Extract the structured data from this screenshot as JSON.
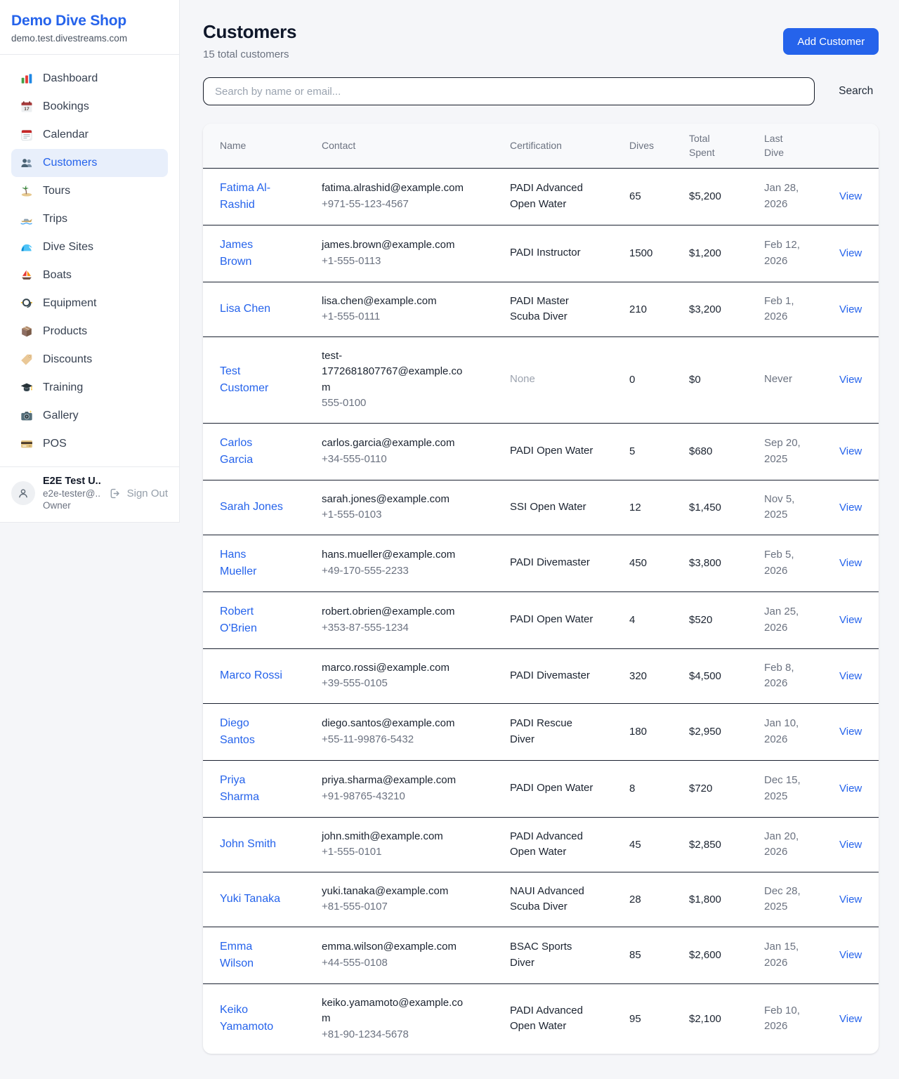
{
  "colors": {
    "accent": "#2563eb"
  },
  "sidebar": {
    "brand": {
      "name": "Demo Dive Shop",
      "domain": "demo.test.divestreams.com"
    },
    "items": [
      {
        "label": "Dashboard",
        "icon": "dashboard",
        "active": false
      },
      {
        "label": "Bookings",
        "icon": "bookings",
        "active": false
      },
      {
        "label": "Calendar",
        "icon": "calendar",
        "active": false
      },
      {
        "label": "Customers",
        "icon": "customers",
        "active": true
      },
      {
        "label": "Tours",
        "icon": "tours",
        "active": false
      },
      {
        "label": "Trips",
        "icon": "trips",
        "active": false
      },
      {
        "label": "Dive Sites",
        "icon": "dive-sites",
        "active": false
      },
      {
        "label": "Boats",
        "icon": "boats",
        "active": false
      },
      {
        "label": "Equipment",
        "icon": "equipment",
        "active": false
      },
      {
        "label": "Products",
        "icon": "products",
        "active": false
      },
      {
        "label": "Discounts",
        "icon": "discounts",
        "active": false
      },
      {
        "label": "Training",
        "icon": "training",
        "active": false
      },
      {
        "label": "Gallery",
        "icon": "gallery",
        "active": false
      },
      {
        "label": "POS",
        "icon": "pos",
        "active": false
      }
    ],
    "user": {
      "name": "E2E Test U...",
      "email": "e2e-tester@...",
      "role": "Owner",
      "sign_out_label": "Sign Out"
    }
  },
  "header": {
    "title": "Customers",
    "subtitle": "15 total customers",
    "add_button": "Add Customer"
  },
  "search": {
    "placeholder": "Search by name or email...",
    "button_label": "Search"
  },
  "table": {
    "columns": [
      "Name",
      "Contact",
      "Certification",
      "Dives",
      "Total\nSpent",
      "Last\nDive",
      ""
    ],
    "view_label": "View",
    "rows": [
      {
        "name": "Fatima Al-Rashid",
        "email": "fatima.alrashid@example.com",
        "phone": "+971-55-123-4567",
        "certification": "PADI Advanced Open Water",
        "muted": false,
        "dives": "65",
        "total_spent": "$5,200",
        "last_dive": "Jan 28,\n2026"
      },
      {
        "name": "James Brown",
        "email": "james.brown@example.com",
        "phone": "+1-555-0113",
        "certification": "PADI Instructor",
        "muted": false,
        "dives": "1500",
        "total_spent": "$1,200",
        "last_dive": "Feb 12,\n2026"
      },
      {
        "name": "Lisa Chen",
        "email": "lisa.chen@example.com",
        "phone": "+1-555-0111",
        "certification": "PADI Master Scuba Diver",
        "muted": false,
        "dives": "210",
        "total_spent": "$3,200",
        "last_dive": "Feb 1,\n2026"
      },
      {
        "name": "Test Customer",
        "email": "test-1772681807767@example.com",
        "phone": "555-0100",
        "certification": "None",
        "muted": true,
        "dives": "0",
        "total_spent": "$0",
        "last_dive": "Never"
      },
      {
        "name": "Carlos Garcia",
        "email": "carlos.garcia@example.com",
        "phone": "+34-555-0110",
        "certification": "PADI Open Water",
        "muted": false,
        "dives": "5",
        "total_spent": "$680",
        "last_dive": "Sep 20,\n2025"
      },
      {
        "name": "Sarah Jones",
        "email": "sarah.jones@example.com",
        "phone": "+1-555-0103",
        "certification": "SSI Open Water",
        "muted": false,
        "dives": "12",
        "total_spent": "$1,450",
        "last_dive": "Nov 5,\n2025"
      },
      {
        "name": "Hans Mueller",
        "email": "hans.mueller@example.com",
        "phone": "+49-170-555-2233",
        "certification": "PADI Divemaster",
        "muted": false,
        "dives": "450",
        "total_spent": "$3,800",
        "last_dive": "Feb 5,\n2026"
      },
      {
        "name": "Robert O'Brien",
        "email": "robert.obrien@example.com",
        "phone": "+353-87-555-1234",
        "certification": "PADI Open Water",
        "muted": false,
        "dives": "4",
        "total_spent": "$520",
        "last_dive": "Jan 25,\n2026"
      },
      {
        "name": "Marco Rossi",
        "email": "marco.rossi@example.com",
        "phone": "+39-555-0105",
        "certification": "PADI Divemaster",
        "muted": false,
        "dives": "320",
        "total_spent": "$4,500",
        "last_dive": "Feb 8,\n2026"
      },
      {
        "name": "Diego Santos",
        "email": "diego.santos@example.com",
        "phone": "+55-11-99876-5432",
        "certification": "PADI Rescue Diver",
        "muted": false,
        "dives": "180",
        "total_spent": "$2,950",
        "last_dive": "Jan 10,\n2026"
      },
      {
        "name": "Priya Sharma",
        "email": "priya.sharma@example.com",
        "phone": "+91-98765-43210",
        "certification": "PADI Open Water",
        "muted": false,
        "dives": "8",
        "total_spent": "$720",
        "last_dive": "Dec 15,\n2025"
      },
      {
        "name": "John Smith",
        "email": "john.smith@example.com",
        "phone": "+1-555-0101",
        "certification": "PADI Advanced Open Water",
        "muted": false,
        "dives": "45",
        "total_spent": "$2,850",
        "last_dive": "Jan 20,\n2026"
      },
      {
        "name": "Yuki Tanaka",
        "email": "yuki.tanaka@example.com",
        "phone": "+81-555-0107",
        "certification": "NAUI Advanced Scuba Diver",
        "muted": false,
        "dives": "28",
        "total_spent": "$1,800",
        "last_dive": "Dec 28,\n2025"
      },
      {
        "name": "Emma Wilson",
        "email": "emma.wilson@example.com",
        "phone": "+44-555-0108",
        "certification": "BSAC Sports Diver",
        "muted": false,
        "dives": "85",
        "total_spent": "$2,600",
        "last_dive": "Jan 15,\n2026"
      },
      {
        "name": "Keiko Yamamoto",
        "email": "keiko.yamamoto@example.com",
        "phone": "+81-90-1234-5678",
        "certification": "PADI Advanced Open Water",
        "muted": false,
        "dives": "95",
        "total_spent": "$2,100",
        "last_dive": "Feb 10,\n2026"
      }
    ]
  }
}
